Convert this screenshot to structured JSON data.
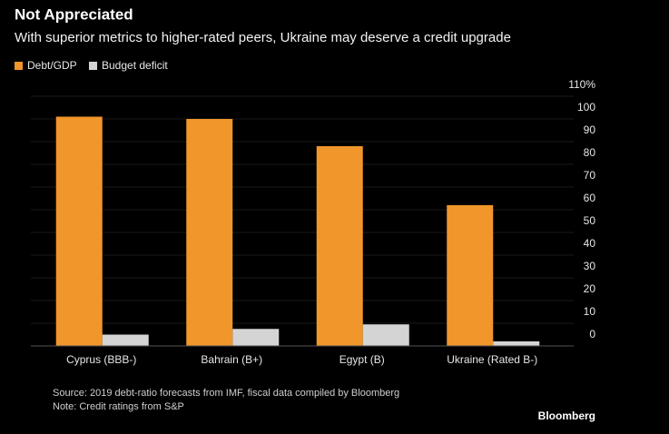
{
  "chart_data": {
    "type": "bar",
    "title": "Not Appreciated",
    "subtitle": "With superior metrics to higher-rated peers, Ukraine may deserve a credit upgrade",
    "categories": [
      "Cyprus (BBB-)",
      "Bahrain (B+)",
      "Egypt (B)",
      "Ukraine (Rated B-)"
    ],
    "series": [
      {
        "name": "Debt/GDP",
        "color": "#f0962a",
        "values": [
          101,
          100,
          88,
          62
        ]
      },
      {
        "name": "Budget deficit",
        "color": "#d4d4d4",
        "values": [
          5,
          7.5,
          9.5,
          2
        ]
      }
    ],
    "ylim": [
      0,
      110
    ],
    "yticks": [
      0,
      10,
      20,
      30,
      40,
      50,
      60,
      70,
      80,
      90,
      100,
      {
        "value": 110,
        "label": "110%"
      }
    ],
    "axis_side": "right",
    "notes": [
      "Source: 2019 debt-ratio forecasts from IMF, fiscal data compiled by Bloomberg",
      "Note: Credit ratings from S&P"
    ],
    "brand": "Bloomberg"
  }
}
